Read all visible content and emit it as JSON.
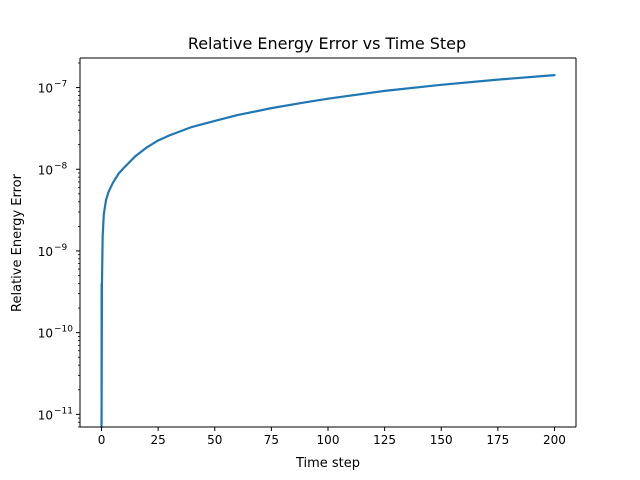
{
  "chart_data": {
    "type": "line",
    "title": "Relative Energy Error vs Time Step",
    "xlabel": "Time step",
    "ylabel": "Relative Energy Error",
    "yscale": "log",
    "xlim": [
      -9.5,
      209.5
    ],
    "ylim": [
      7e-12,
      2.3e-07
    ],
    "grid": false,
    "legend": "none",
    "line_color": "#1f77b4",
    "x_ticks": [
      0,
      25,
      50,
      75,
      100,
      125,
      150,
      175,
      200
    ],
    "x_tick_labels": [
      "0",
      "25",
      "50",
      "75",
      "100",
      "125",
      "150",
      "175",
      "200"
    ],
    "y_major_ticks": [
      1e-11,
      1e-10,
      1e-09,
      1e-08,
      1e-07
    ],
    "y_tick_labels": [
      {
        "base": "10",
        "exp": "−11"
      },
      {
        "base": "10",
        "exp": "−10"
      },
      {
        "base": "10",
        "exp": "−9"
      },
      {
        "base": "10",
        "exp": "−8"
      },
      {
        "base": "10",
        "exp": "−7"
      }
    ],
    "series": [
      {
        "name": "Relative Energy Error",
        "x": [
          0,
          0.2,
          0.5,
          1,
          2,
          3,
          5,
          7.5,
          10,
          15,
          20,
          25,
          30,
          40,
          50,
          60,
          75,
          90,
          100,
          125,
          150,
          175,
          200
        ],
        "y": [
          7e-12,
          4e-10,
          1.5e-09,
          2.8e-09,
          4.2e-09,
          5.2e-09,
          6.8e-09,
          8.8e-09,
          1.05e-08,
          1.45e-08,
          1.85e-08,
          2.25e-08,
          2.6e-08,
          3.3e-08,
          3.9e-08,
          4.6e-08,
          5.6e-08,
          6.6e-08,
          7.3e-08,
          9.1e-08,
          1.08e-07,
          1.25e-07,
          1.42e-07
        ]
      }
    ]
  }
}
